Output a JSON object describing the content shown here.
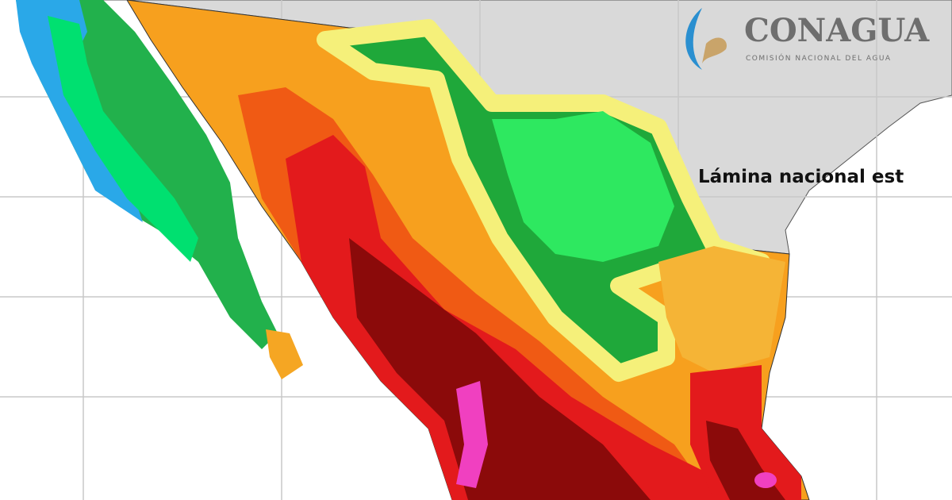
{
  "logo": {
    "name": "CONAGUA",
    "subtitle": "COMISIÓN NACIONAL DEL AGUA"
  },
  "caption": "Lámina nacional est"
}
